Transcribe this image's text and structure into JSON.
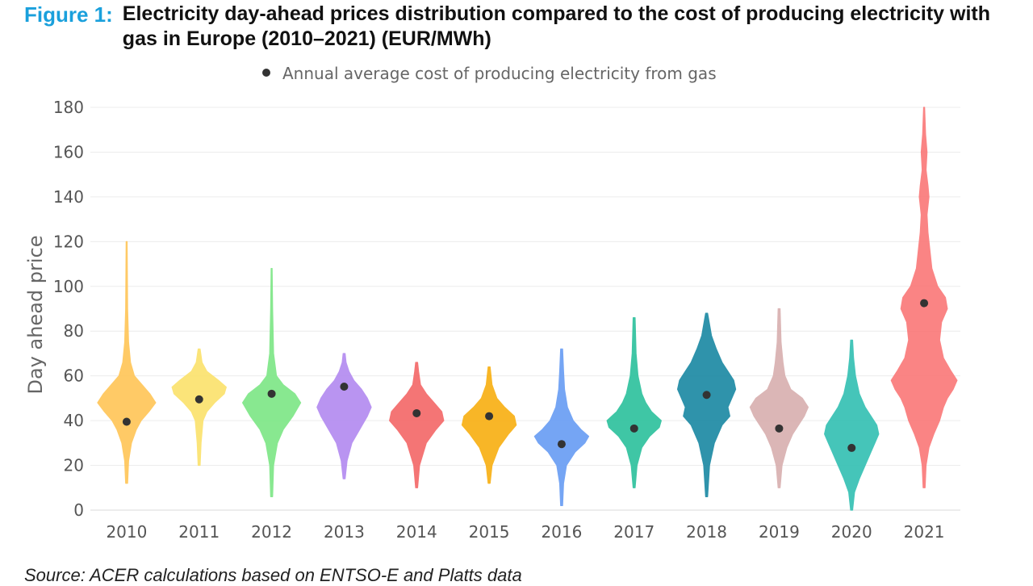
{
  "figure": {
    "label": "Figure 1:",
    "title": "Electricity day-ahead prices distribution compared to the cost of producing electricity with gas in Europe (2010–2021) (EUR/MWh)"
  },
  "source": "Source: ACER calculations based on ENTSO-E and Platts data",
  "chart_data": {
    "type": "violin",
    "title": "Electricity day-ahead prices distribution compared to the cost of producing electricity with gas in Europe (2010–2021) (EUR/MWh)",
    "xlabel": "",
    "ylabel": "Day ahead price",
    "ylim": [
      0,
      180
    ],
    "yticks": [
      0,
      20,
      40,
      60,
      80,
      100,
      120,
      140,
      160,
      180
    ],
    "grid": true,
    "legend": {
      "position": "top-center",
      "label": "Annual average cost of producing electricity from gas",
      "marker_color": "#333333"
    },
    "categories": [
      "2010",
      "2011",
      "2012",
      "2013",
      "2014",
      "2015",
      "2016",
      "2017",
      "2018",
      "2019",
      "2020",
      "2021"
    ],
    "series": [
      {
        "year": "2010",
        "color": "#ffc65a",
        "min": 12,
        "max": 120,
        "gas_cost": 39.5,
        "profile": [
          [
            12,
            1
          ],
          [
            22,
            2
          ],
          [
            30,
            5
          ],
          [
            36,
            10
          ],
          [
            40,
            15
          ],
          [
            44,
            23
          ],
          [
            48,
            30
          ],
          [
            52,
            24
          ],
          [
            56,
            16
          ],
          [
            60,
            8
          ],
          [
            66,
            4
          ],
          [
            75,
            2
          ],
          [
            90,
            1
          ],
          [
            120,
            0.5
          ]
        ]
      },
      {
        "year": "2011",
        "color": "#fbe26e",
        "min": 20,
        "max": 72,
        "gas_cost": 49.5,
        "profile": [
          [
            20,
            1
          ],
          [
            30,
            2
          ],
          [
            40,
            4
          ],
          [
            44,
            8
          ],
          [
            48,
            16
          ],
          [
            52,
            26
          ],
          [
            55,
            28
          ],
          [
            58,
            20
          ],
          [
            62,
            8
          ],
          [
            66,
            3
          ],
          [
            72,
            1
          ]
        ]
      },
      {
        "year": "2012",
        "color": "#7ee787",
        "min": 6,
        "max": 108,
        "gas_cost": 52,
        "profile": [
          [
            6,
            1
          ],
          [
            20,
            2
          ],
          [
            30,
            6
          ],
          [
            36,
            12
          ],
          [
            42,
            22
          ],
          [
            48,
            30
          ],
          [
            52,
            24
          ],
          [
            56,
            12
          ],
          [
            60,
            5
          ],
          [
            70,
            2
          ],
          [
            90,
            1
          ],
          [
            108,
            0.5
          ]
        ]
      },
      {
        "year": "2013",
        "color": "#b48cf0",
        "min": 14,
        "max": 70,
        "gas_cost": 55.2,
        "profile": [
          [
            14,
            1
          ],
          [
            22,
            3
          ],
          [
            30,
            8
          ],
          [
            36,
            16
          ],
          [
            42,
            24
          ],
          [
            46,
            28
          ],
          [
            50,
            24
          ],
          [
            54,
            18
          ],
          [
            58,
            10
          ],
          [
            62,
            5
          ],
          [
            66,
            2
          ],
          [
            70,
            1
          ]
        ]
      },
      {
        "year": "2014",
        "color": "#f46a6a",
        "min": 10,
        "max": 66,
        "gas_cost": 43.3,
        "profile": [
          [
            10,
            1
          ],
          [
            20,
            3
          ],
          [
            30,
            10
          ],
          [
            36,
            20
          ],
          [
            40,
            28
          ],
          [
            44,
            26
          ],
          [
            48,
            18
          ],
          [
            52,
            10
          ],
          [
            56,
            4
          ],
          [
            62,
            2
          ],
          [
            66,
            1
          ]
        ]
      },
      {
        "year": "2015",
        "color": "#f8b015",
        "min": 12,
        "max": 64,
        "gas_cost": 42,
        "profile": [
          [
            12,
            1
          ],
          [
            20,
            3
          ],
          [
            28,
            10
          ],
          [
            34,
            20
          ],
          [
            38,
            28
          ],
          [
            42,
            26
          ],
          [
            46,
            16
          ],
          [
            50,
            8
          ],
          [
            56,
            3
          ],
          [
            60,
            2
          ],
          [
            64,
            1
          ]
        ]
      },
      {
        "year": "2016",
        "color": "#6a9ef4",
        "min": 2,
        "max": 72,
        "gas_cost": 29.5,
        "profile": [
          [
            2,
            1
          ],
          [
            12,
            2
          ],
          [
            20,
            5
          ],
          [
            26,
            14
          ],
          [
            30,
            24
          ],
          [
            33,
            28
          ],
          [
            36,
            20
          ],
          [
            40,
            12
          ],
          [
            46,
            6
          ],
          [
            54,
            3
          ],
          [
            62,
            2
          ],
          [
            72,
            1
          ]
        ]
      },
      {
        "year": "2017",
        "color": "#2fc29e",
        "min": 10,
        "max": 86,
        "gas_cost": 36.5,
        "profile": [
          [
            10,
            1
          ],
          [
            20,
            3
          ],
          [
            28,
            8
          ],
          [
            33,
            16
          ],
          [
            37,
            26
          ],
          [
            40,
            28
          ],
          [
            44,
            18
          ],
          [
            48,
            12
          ],
          [
            52,
            8
          ],
          [
            60,
            4
          ],
          [
            70,
            2
          ],
          [
            86,
            1
          ]
        ]
      },
      {
        "year": "2018",
        "color": "#1e8aa4",
        "min": 6,
        "max": 88,
        "gas_cost": 51.5,
        "profile": [
          [
            6,
            1
          ],
          [
            20,
            3
          ],
          [
            30,
            8
          ],
          [
            38,
            16
          ],
          [
            42,
            24
          ],
          [
            46,
            22
          ],
          [
            50,
            26
          ],
          [
            54,
            30
          ],
          [
            58,
            28
          ],
          [
            62,
            22
          ],
          [
            66,
            16
          ],
          [
            72,
            10
          ],
          [
            78,
            5
          ],
          [
            88,
            1
          ]
        ]
      },
      {
        "year": "2019",
        "color": "#d9b0b0",
        "min": 10,
        "max": 90,
        "gas_cost": 36.5,
        "profile": [
          [
            10,
            1
          ],
          [
            20,
            3
          ],
          [
            28,
            8
          ],
          [
            34,
            14
          ],
          [
            38,
            20
          ],
          [
            42,
            26
          ],
          [
            46,
            30
          ],
          [
            50,
            24
          ],
          [
            54,
            12
          ],
          [
            60,
            6
          ],
          [
            66,
            4
          ],
          [
            75,
            2
          ],
          [
            90,
            1
          ]
        ]
      },
      {
        "year": "2020",
        "color": "#36c1b4",
        "min": 0,
        "max": 76,
        "gas_cost": 27.8,
        "profile": [
          [
            0,
            1
          ],
          [
            8,
            3
          ],
          [
            14,
            8
          ],
          [
            20,
            14
          ],
          [
            26,
            20
          ],
          [
            30,
            24
          ],
          [
            34,
            28
          ],
          [
            38,
            26
          ],
          [
            42,
            20
          ],
          [
            46,
            14
          ],
          [
            52,
            8
          ],
          [
            60,
            4
          ],
          [
            68,
            2
          ],
          [
            76,
            1
          ]
        ]
      },
      {
        "year": "2021",
        "color": "#fa7a7a",
        "min": 10,
        "max": 180,
        "gas_cost": 92.5,
        "profile": [
          [
            10,
            1
          ],
          [
            20,
            2
          ],
          [
            28,
            5
          ],
          [
            34,
            10
          ],
          [
            40,
            16
          ],
          [
            46,
            20
          ],
          [
            50,
            24
          ],
          [
            54,
            30
          ],
          [
            58,
            34
          ],
          [
            62,
            28
          ],
          [
            68,
            20
          ],
          [
            76,
            16
          ],
          [
            84,
            18
          ],
          [
            90,
            24
          ],
          [
            95,
            22
          ],
          [
            100,
            14
          ],
          [
            108,
            8
          ],
          [
            116,
            6
          ],
          [
            124,
            4
          ],
          [
            132,
            3
          ],
          [
            140,
            5
          ],
          [
            145,
            4
          ],
          [
            152,
            2
          ],
          [
            160,
            3
          ],
          [
            168,
            1.5
          ],
          [
            180,
            0.5
          ]
        ]
      }
    ]
  }
}
